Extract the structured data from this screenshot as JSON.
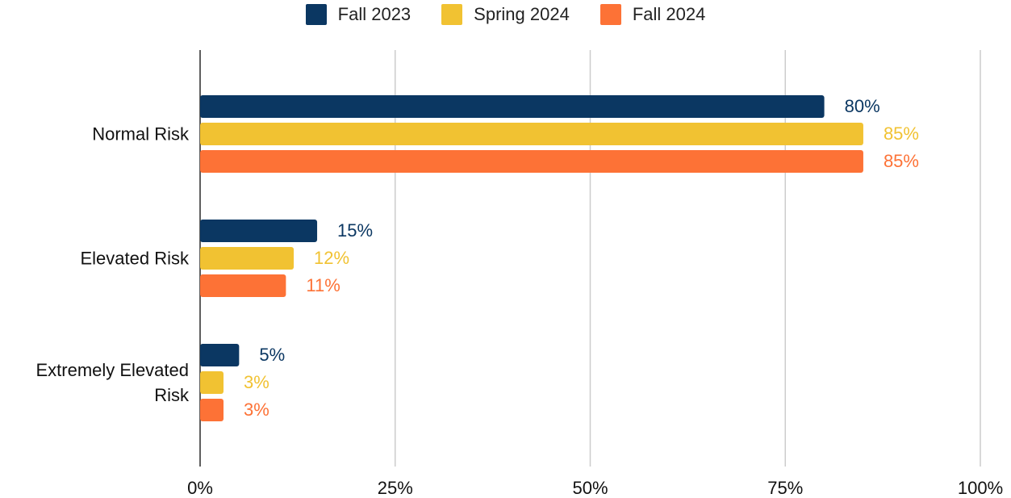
{
  "chart_data": {
    "type": "bar",
    "orientation": "horizontal",
    "categories": [
      "Normal Risk",
      "Elevated Risk",
      "Extremely Elevated Risk"
    ],
    "series": [
      {
        "name": "Fall 2023",
        "color": "#0b3762",
        "values": [
          80,
          15,
          5
        ],
        "value_labels": [
          "80%",
          "15%",
          "5%"
        ]
      },
      {
        "name": "Spring 2024",
        "color": "#f1c232",
        "values": [
          85,
          12,
          3
        ],
        "value_labels": [
          "85%",
          "12%",
          "3%"
        ]
      },
      {
        "name": "Fall 2024",
        "color": "#fd7236",
        "values": [
          85,
          11,
          3
        ],
        "value_labels": [
          "85%",
          "11%",
          "3%"
        ]
      }
    ],
    "xlim": [
      0,
      100
    ],
    "xticks": [
      {
        "value": 0,
        "label": "0%"
      },
      {
        "value": 25,
        "label": "25%"
      },
      {
        "value": 50,
        "label": "50%"
      },
      {
        "value": 75,
        "label": "75%"
      },
      {
        "value": 100,
        "label": "100%"
      }
    ],
    "grid": true,
    "legend": "top"
  }
}
